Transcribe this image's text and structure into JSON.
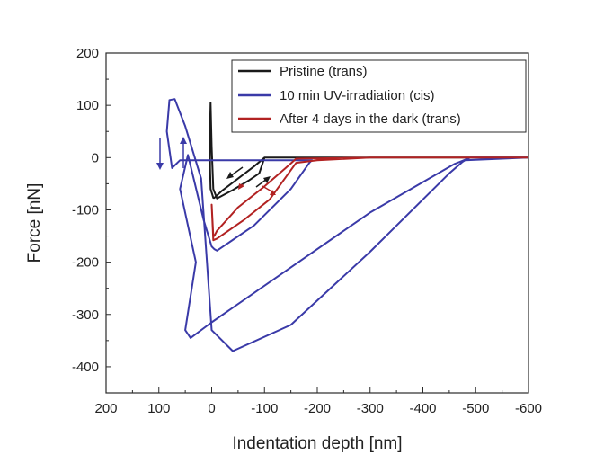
{
  "chart_data": {
    "type": "line",
    "xlabel": "Indentation depth [nm]",
    "ylabel": "Force [nN]",
    "xlim": [
      200,
      -600
    ],
    "ylim": [
      -450,
      200
    ],
    "x_reversed": true,
    "xticks": [
      "200",
      "100",
      "0",
      "-100",
      "-200",
      "-300",
      "-400",
      "-500",
      "-600"
    ],
    "yticks": [
      "200",
      "100",
      "0",
      "-100",
      "-200",
      "-300",
      "-400"
    ],
    "xtick_values": [
      200,
      100,
      0,
      -100,
      -200,
      -300,
      -400,
      -500,
      -600
    ],
    "ytick_values": [
      200,
      100,
      0,
      -100,
      -200,
      -300,
      -400
    ],
    "legend_position": "top-right",
    "grid": false,
    "series": [
      {
        "name": "Pristine (trans)",
        "color": "#1a1a1a",
        "x": [
          -600,
          -400,
          -200,
          -100,
          -80,
          -50,
          -20,
          -5,
          -3,
          2,
          3,
          3,
          2,
          0,
          -3,
          -10,
          -40,
          -70,
          -90,
          -100,
          -200,
          -400,
          -600
        ],
        "y": [
          0,
          0,
          0,
          0,
          -17,
          -40,
          -63,
          -77,
          -77,
          -60,
          -20,
          60,
          105,
          20,
          -60,
          -78,
          -62,
          -44,
          -30,
          0,
          0,
          0,
          0
        ]
      },
      {
        "name": "10 min UV-irradiation (cis)",
        "color": "#3a3aa8",
        "x": [
          -600,
          -490,
          -470,
          -460,
          -300,
          -150,
          0,
          40,
          50,
          30,
          60,
          45,
          15,
          0,
          -5,
          -10,
          -80,
          -150,
          -185,
          -190,
          -100,
          0,
          30,
          60,
          75,
          85,
          80,
          70,
          50,
          20,
          0,
          -40,
          -150,
          -300,
          -450,
          -475,
          -480,
          -600
        ],
        "y": [
          0,
          0,
          -8,
          -12,
          -105,
          -210,
          -315,
          -345,
          -330,
          -200,
          -60,
          5,
          -120,
          -170,
          -175,
          -178,
          -130,
          -60,
          -10,
          -5,
          -5,
          -5,
          -5,
          -5,
          -20,
          50,
          110,
          112,
          60,
          -40,
          -330,
          -370,
          -320,
          -180,
          -30,
          -8,
          -5,
          0
        ]
      },
      {
        "name": "After 4 days in the dark (trans)",
        "color": "#b22222",
        "x": [
          -600,
          -300,
          -160,
          -140,
          -100,
          -50,
          -10,
          -5,
          -3,
          0,
          -3,
          -10,
          -60,
          -110,
          -160,
          -200,
          -300,
          -600
        ],
        "y": [
          0,
          0,
          -2,
          -20,
          -55,
          -95,
          -140,
          -150,
          -150,
          -90,
          -158,
          -155,
          -120,
          -80,
          -10,
          -5,
          0,
          0
        ]
      }
    ],
    "annotations": [
      "direction arrows"
    ]
  }
}
